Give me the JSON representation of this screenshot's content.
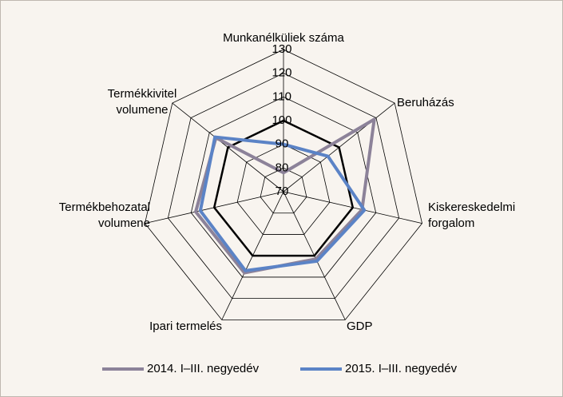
{
  "chart_data": {
    "type": "radar",
    "categories": [
      "Munkanélküliek száma",
      "Beruházás",
      "Kiskereskedelmi forgalom",
      "GDP",
      "Ipari termelés",
      "Termékbehozatal volumene",
      "Termékkivitel volumene"
    ],
    "reference_value": 100,
    "reference_color": "#000000",
    "series": [
      {
        "name": "2014. I–III. negyedév",
        "color": "#8c8299",
        "values": [
          78,
          119,
          104,
          101.5,
          108,
          108,
          106.5
        ]
      },
      {
        "name": "2015. I–III. negyedév",
        "color": "#5b83c6",
        "values": [
          90,
          94,
          105,
          102.5,
          107,
          106,
          107
        ]
      }
    ],
    "ylim": [
      70,
      130
    ],
    "yticks": [
      70,
      80,
      90,
      100,
      110,
      120,
      130
    ],
    "grid": true,
    "legend": "bottom"
  }
}
